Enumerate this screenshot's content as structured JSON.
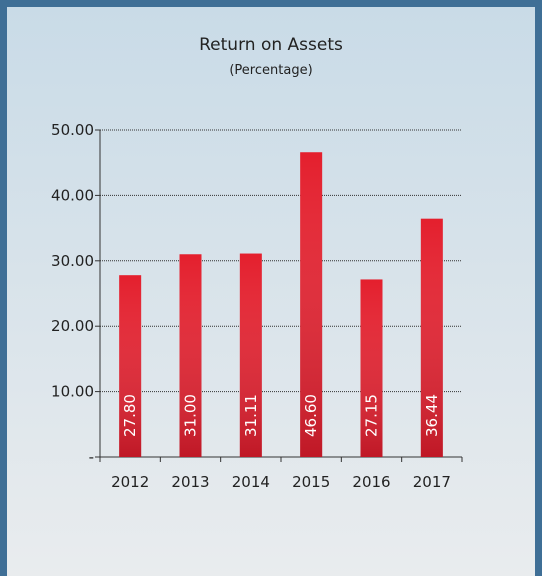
{
  "chart_data": {
    "type": "bar",
    "title": "Return on Assets",
    "subtitle": "(Percentage)",
    "categories": [
      "2012",
      "2013",
      "2014",
      "2015",
      "2016",
      "2017"
    ],
    "values": [
      27.8,
      31.0,
      31.11,
      46.6,
      27.15,
      36.44
    ],
    "value_labels": [
      "27.80",
      "31.00",
      "31.11",
      "46.60",
      "27.15",
      "36.44"
    ],
    "color": "#e41f2d",
    "ylim": [
      0,
      50
    ],
    "yticks": [
      {
        "value": 0,
        "label": "-"
      },
      {
        "value": 10,
        "label": "10.00"
      },
      {
        "value": 20,
        "label": "20.00"
      },
      {
        "value": 30,
        "label": "30.00"
      },
      {
        "value": 40,
        "label": "40.00"
      },
      {
        "value": 50,
        "label": "50.00"
      }
    ],
    "grid": true
  }
}
